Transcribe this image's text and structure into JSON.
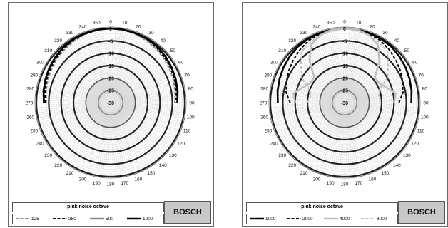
{
  "colors": {
    "dark": "#000000",
    "mid": "#8a8a8a",
    "light": "#bdbdbd",
    "grid": "#d0d0d0",
    "ring": "#222222"
  },
  "chart_data": [
    {
      "type": "polar-line",
      "title": "pink noise octave",
      "brand": "BOSCH",
      "angle_ticks": [
        0,
        10,
        20,
        30,
        40,
        50,
        60,
        70,
        80,
        90,
        100,
        110,
        120,
        130,
        140,
        150,
        160,
        170,
        180,
        190,
        200,
        210,
        220,
        230,
        240,
        250,
        260,
        270,
        280,
        290,
        300,
        310,
        320,
        330,
        340,
        350
      ],
      "radial_ticks": [
        0,
        -5,
        -10,
        -15,
        -20,
        -25,
        -30
      ],
      "radial_range": [
        -30,
        0
      ],
      "grid": true,
      "series": [
        {
          "name": "125",
          "style": "dash-mid",
          "angles": [
            270,
            280,
            290,
            300,
            310,
            320,
            330,
            340,
            350,
            0,
            10,
            20,
            30,
            40,
            50,
            60,
            70,
            80,
            90
          ],
          "values": [
            -4,
            -3.5,
            -3,
            -2.5,
            -2,
            -1.5,
            -1,
            -0.5,
            -0.2,
            0,
            -0.2,
            -0.5,
            -1,
            -1.5,
            -2,
            -2.5,
            -3,
            -3.5,
            -4
          ]
        },
        {
          "name": "250",
          "style": "dash-dark",
          "angles": [
            270,
            280,
            290,
            300,
            310,
            320,
            330,
            340,
            350,
            0,
            10,
            20,
            30,
            40,
            50,
            60,
            70,
            80,
            90
          ],
          "values": [
            -3.5,
            -3,
            -2.5,
            -2,
            -1.5,
            -1,
            -0.5,
            -0.2,
            0,
            0,
            0,
            -0.2,
            -0.5,
            -1,
            -1.5,
            -2,
            -2.5,
            -3,
            -3.5
          ]
        },
        {
          "name": "500",
          "style": "solid-mid",
          "angles": [
            270,
            280,
            290,
            300,
            310,
            320,
            330,
            340,
            350,
            0,
            10,
            20,
            30,
            40,
            50,
            60,
            70,
            80,
            90
          ],
          "values": [
            -3,
            -2.5,
            -2,
            -1.5,
            -1,
            -0.5,
            -0.3,
            -0.2,
            0,
            0,
            0,
            -0.2,
            -0.3,
            -0.5,
            -1,
            -1.5,
            -2,
            -2.5,
            -3
          ]
        },
        {
          "name": "1000",
          "style": "solid-dark",
          "angles": [
            270,
            280,
            290,
            300,
            310,
            320,
            330,
            340,
            350,
            0,
            10,
            20,
            30,
            40,
            50,
            60,
            70,
            80,
            90
          ],
          "values": [
            -3,
            -2.5,
            -2,
            -1.5,
            -1,
            -0.5,
            -0.3,
            -0.2,
            0,
            0,
            0,
            -0.2,
            -0.3,
            -0.5,
            -1,
            -1.5,
            -2,
            -2.5,
            -3
          ]
        }
      ]
    },
    {
      "type": "polar-line",
      "title": "pink noise octave",
      "brand": "BOSCH",
      "angle_ticks": [
        0,
        10,
        20,
        30,
        40,
        50,
        60,
        70,
        80,
        90,
        100,
        110,
        120,
        130,
        140,
        150,
        160,
        170,
        180,
        190,
        200,
        210,
        220,
        230,
        240,
        250,
        260,
        270,
        280,
        290,
        300,
        310,
        320,
        330,
        340,
        350
      ],
      "radial_ticks": [
        0,
        -5,
        -10,
        -15,
        -20,
        -25,
        -30
      ],
      "radial_range": [
        -30,
        0
      ],
      "grid": true,
      "series": [
        {
          "name": "1000",
          "style": "solid-dark",
          "angles": [
            270,
            280,
            290,
            300,
            310,
            320,
            330,
            340,
            350,
            0,
            10,
            20,
            30,
            40,
            50,
            60,
            70,
            80,
            90
          ],
          "values": [
            -3,
            -2.5,
            -2,
            -1.5,
            -1,
            -0.5,
            -0.3,
            -0.2,
            0,
            0,
            0,
            -0.2,
            -0.3,
            -0.5,
            -1,
            -1.5,
            -2,
            -2.5,
            -3
          ]
        },
        {
          "name": "2000",
          "style": "dash-dark",
          "angles": [
            270,
            280,
            290,
            300,
            310,
            320,
            330,
            340,
            350,
            0,
            10,
            20,
            30,
            40,
            50,
            60,
            70,
            80,
            90
          ],
          "values": [
            -8,
            -6,
            -5,
            -4,
            -3,
            -2,
            -1,
            -0.5,
            0,
            0,
            0,
            -0.5,
            -1,
            -2,
            -3,
            -4,
            -5,
            -6,
            -8
          ]
        },
        {
          "name": "4000",
          "style": "solid-light",
          "angles": [
            270,
            280,
            290,
            300,
            310,
            320,
            330,
            340,
            350,
            0,
            10,
            20,
            30,
            40,
            50,
            60,
            70,
            80,
            90
          ],
          "values": [
            -10,
            -9,
            -12,
            -14,
            -14,
            -8,
            -3,
            -1,
            0,
            0,
            0,
            -1,
            -3,
            -8,
            -14,
            -14,
            -12,
            -9,
            -10
          ]
        },
        {
          "name": "8000",
          "style": "dash-light",
          "angles": [
            270,
            280,
            290,
            300,
            310,
            320,
            330,
            340,
            350,
            0,
            10,
            20,
            30,
            40,
            50,
            60,
            70,
            80,
            90
          ],
          "values": [
            -15,
            -16,
            -15,
            -10,
            -7,
            -3,
            -2,
            -1,
            -0.5,
            0,
            -0.5,
            -1,
            -2,
            -3,
            -7,
            -10,
            -15,
            -16,
            -15
          ]
        }
      ]
    }
  ]
}
